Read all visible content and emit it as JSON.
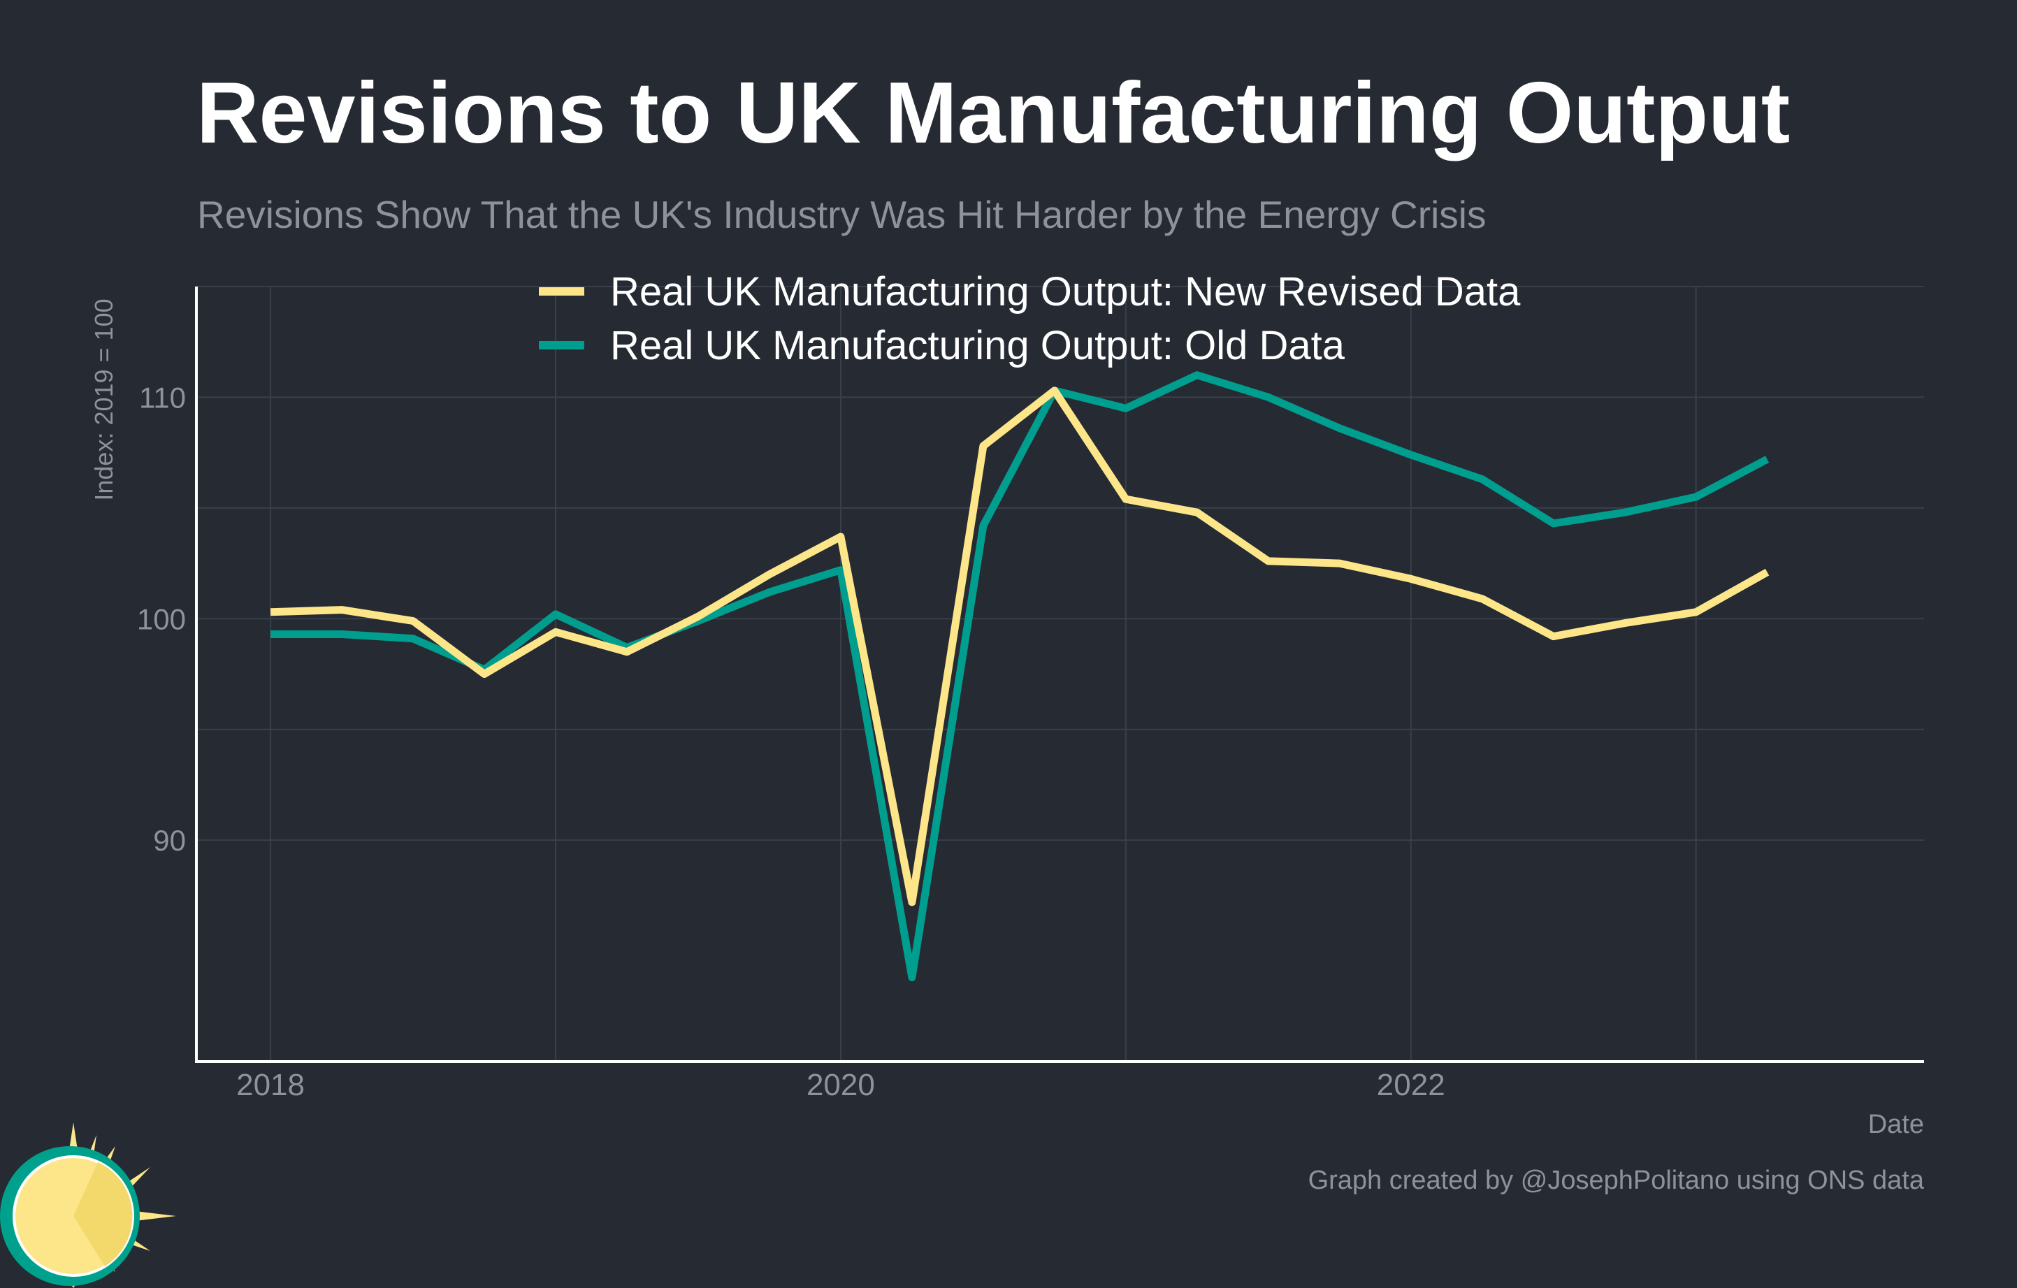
{
  "title": "Revisions to UK Manufacturing Output",
  "subtitle": "Revisions Show That the UK's Industry Was Hit Harder by the Energy Crisis",
  "caption": "Graph created by @JosephPolitano using ONS data",
  "chart_data": {
    "type": "line",
    "xlabel": "Date",
    "ylabel": "Index: 2019 = 100",
    "xlim": [
      2017.74,
      2023.8
    ],
    "ylim": [
      80.0,
      115.0
    ],
    "xticks": [
      {
        "value": 2018,
        "label": "2018"
      },
      {
        "value": 2020,
        "label": "2020"
      },
      {
        "value": 2022,
        "label": "2022"
      }
    ],
    "yticks": [
      {
        "value": 90,
        "label": "90"
      },
      {
        "value": 100,
        "label": "100"
      },
      {
        "value": 110,
        "label": "110"
      }
    ],
    "x": [
      "2018 Q1",
      "2018 Q2",
      "2018 Q3",
      "2018 Q4",
      "2019 Q1",
      "2019 Q2",
      "2019 Q3",
      "2019 Q4",
      "2020 Q1",
      "2020 Q2",
      "2020 Q3",
      "2020 Q4",
      "2021 Q1",
      "2021 Q2",
      "2021 Q3",
      "2021 Q4",
      "2022 Q1",
      "2022 Q2",
      "2022 Q3",
      "2022 Q4",
      "2023 Q1",
      "2023 Q2"
    ],
    "x_numeric": [
      2018,
      2018.25,
      2018.5,
      2018.75,
      2019,
      2019.25,
      2019.5,
      2019.75,
      2020,
      2020.25,
      2020.5,
      2020.75,
      2021,
      2021.25,
      2021.5,
      2021.75,
      2022,
      2022.25,
      2022.5,
      2022.75,
      2023,
      2023.25
    ],
    "grid": true,
    "legend_position": "top-center",
    "series": [
      {
        "name": "Real UK Manufacturing Output: New Revised Data",
        "color": "#fde68a",
        "values": [
          100.3,
          100.4,
          99.9,
          97.5,
          99.4,
          98.5,
          100.1,
          102.0,
          103.7,
          87.2,
          107.8,
          110.3,
          105.4,
          104.8,
          102.6,
          102.5,
          101.8,
          100.9,
          99.2,
          99.8,
          100.3,
          102.1
        ]
      },
      {
        "name": "Real UK Manufacturing Output: Old Data",
        "color": "#009e8e",
        "values": [
          99.3,
          99.3,
          99.1,
          97.7,
          100.2,
          98.7,
          99.9,
          101.2,
          102.2,
          83.8,
          104.2,
          110.3,
          109.5,
          111.0,
          110.0,
          108.6,
          107.4,
          106.3,
          104.3,
          104.8,
          105.5,
          107.2
        ]
      }
    ]
  }
}
